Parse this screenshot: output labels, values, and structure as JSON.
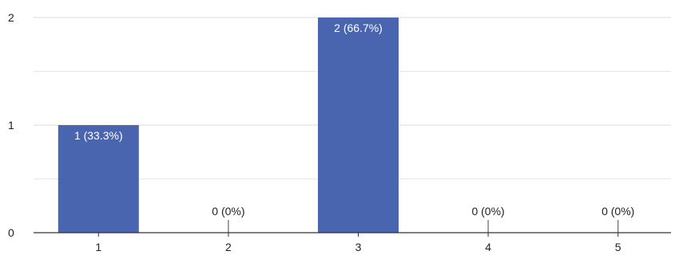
{
  "chart_data": {
    "type": "bar",
    "categories": [
      "1",
      "2",
      "3",
      "4",
      "5"
    ],
    "values": [
      1,
      0,
      2,
      0,
      0
    ],
    "data_labels": [
      "1 (33.3%)",
      "0 (0%)",
      "2 (66.7%)",
      "0 (0%)",
      "0 (0%)"
    ],
    "y_ticks": [
      "0",
      "1",
      "2"
    ],
    "ylim": [
      0,
      2
    ],
    "grid": true,
    "legend": "none",
    "bar_color": "#4a65b0",
    "label_color_inside": "#ffffff",
    "label_color_outside": "#222222",
    "gridline_color": "#e6e6e6",
    "axis_color": "#333333"
  }
}
